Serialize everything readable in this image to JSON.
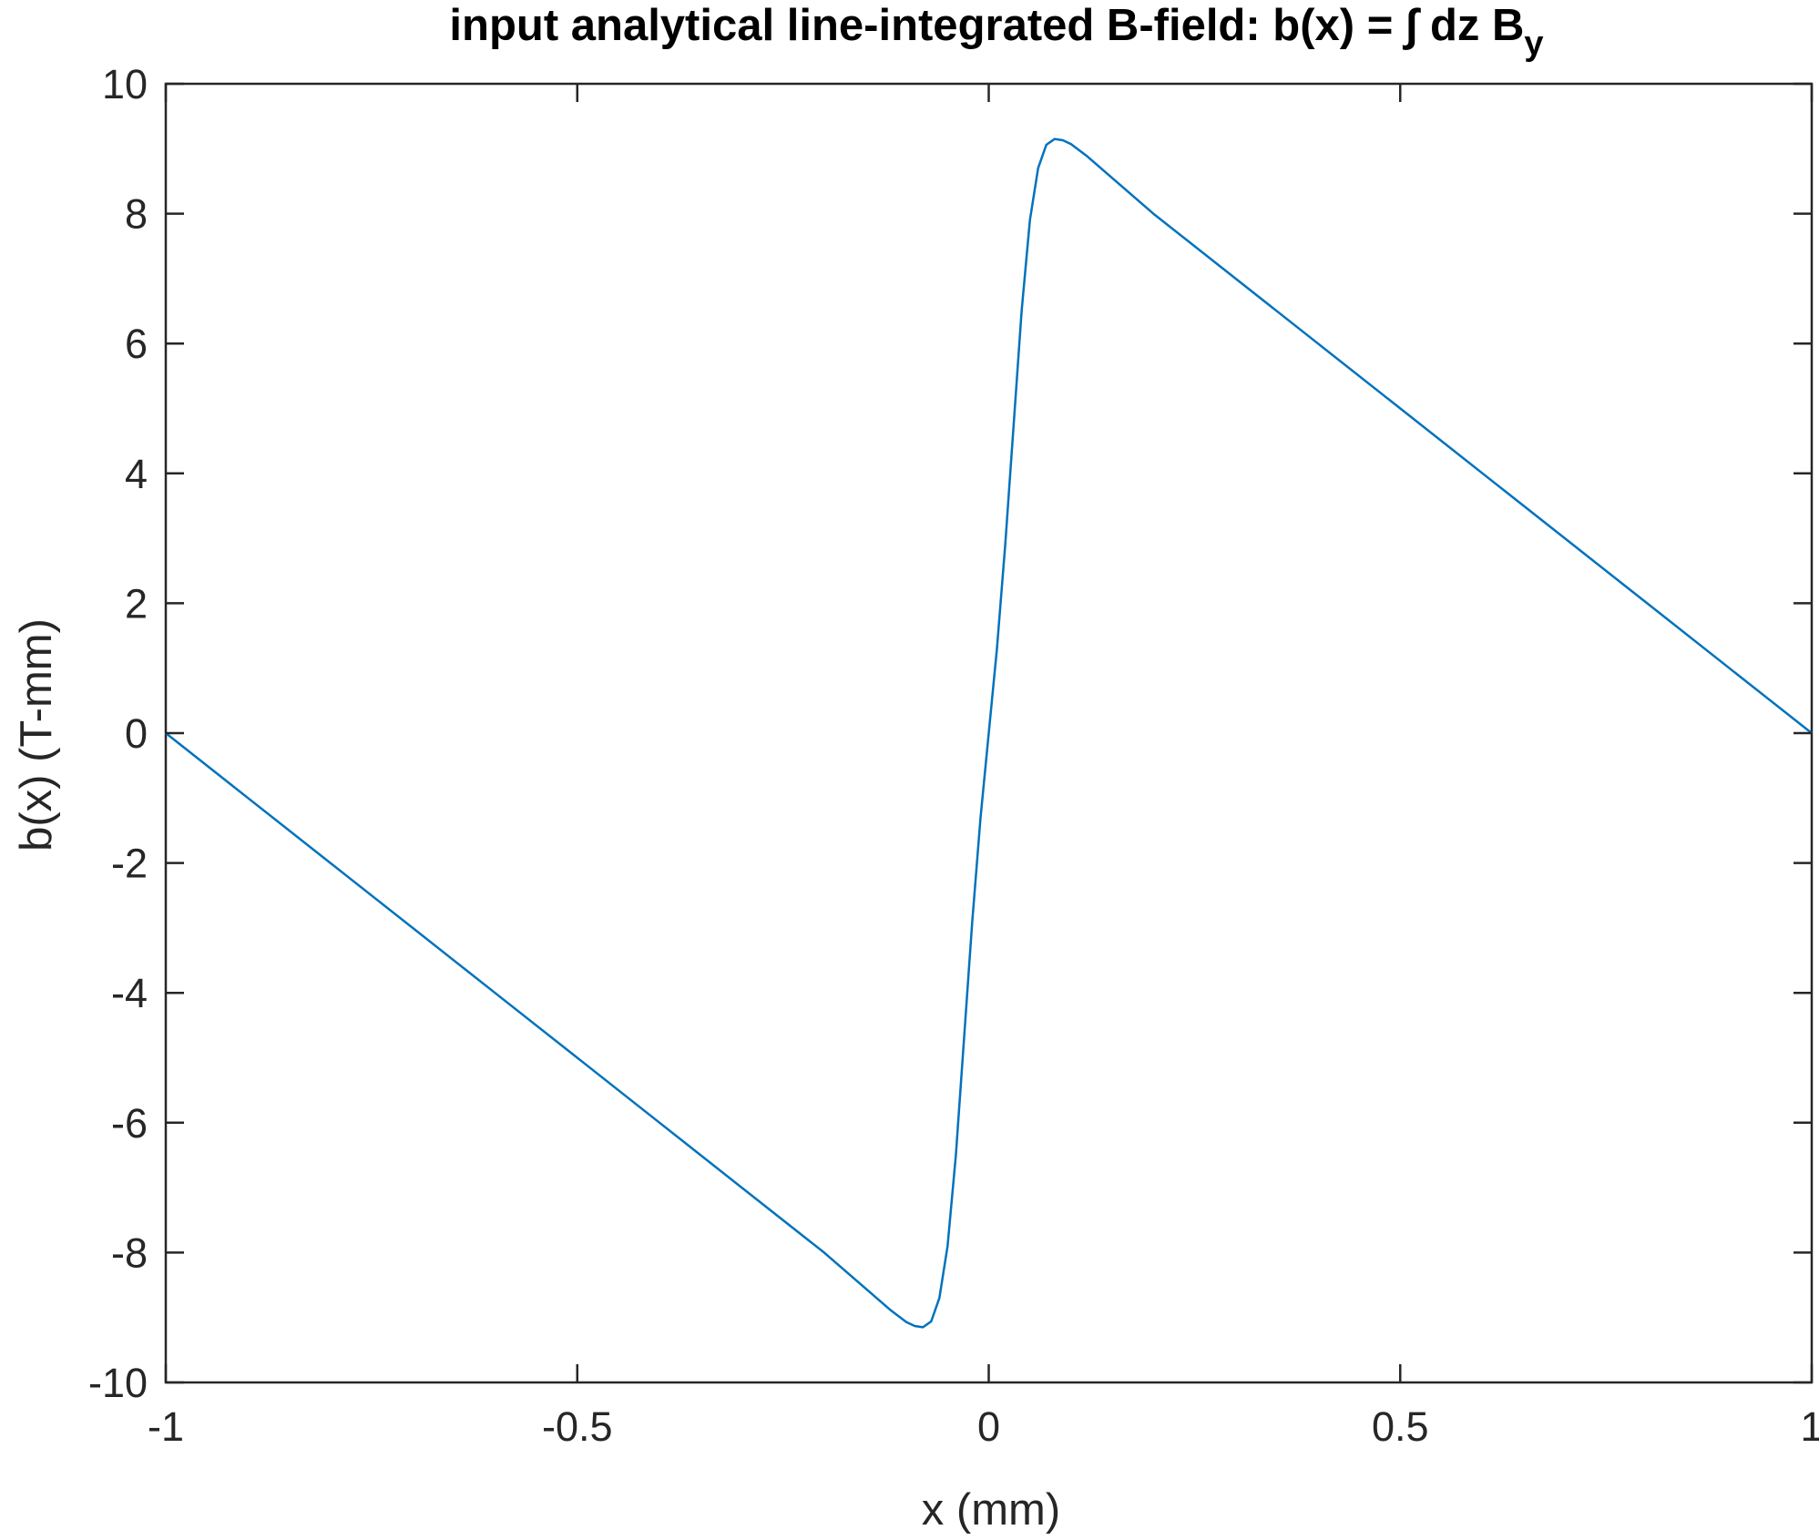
{
  "chart_data": {
    "type": "line",
    "title": "input analytical line-integrated B-field: b(x) = ∫ dz B",
    "title_subscript": "y",
    "xlabel": "x (mm)",
    "ylabel": "b(x) (T-mm)",
    "xlim": [
      -1,
      1
    ],
    "ylim": [
      -10,
      10
    ],
    "xticks": [
      -1,
      -0.5,
      0,
      0.5,
      1
    ],
    "xtick_labels": [
      "-1",
      "-0.5",
      "0",
      "0.5",
      "1"
    ],
    "yticks": [
      -10,
      -8,
      -6,
      -4,
      -2,
      0,
      2,
      4,
      6,
      8,
      10
    ],
    "ytick_labels": [
      "-10",
      "-8",
      "-6",
      "-4",
      "-2",
      "0",
      "2",
      "4",
      "6",
      "8",
      "10"
    ],
    "grid": false,
    "box": true,
    "line_color": "#0072BD",
    "axis_color": "#262626",
    "series": [
      {
        "x": [
          -1,
          -0.9,
          -0.8,
          -0.7,
          -0.6,
          -0.5,
          -0.4,
          -0.3,
          -0.2,
          -0.15,
          -0.12,
          -0.1,
          -0.09,
          -0.08,
          -0.07,
          -0.06,
          -0.05,
          -0.04,
          -0.03,
          -0.02,
          -0.01,
          0,
          0.01,
          0.02,
          0.03,
          0.04,
          0.05,
          0.06,
          0.07,
          0.08,
          0.09,
          0.1,
          0.12,
          0.15,
          0.2,
          0.3,
          0.4,
          0.5,
          0.6,
          0.7,
          0.8,
          0.9,
          1
        ],
        "y": [
          0,
          -1.0,
          -2.0,
          -3.0,
          -4.0,
          -5.0,
          -6.0,
          -7.0,
          -8.0,
          -8.55,
          -8.88,
          -9.07,
          -9.13,
          -9.15,
          -9.06,
          -8.7,
          -7.9,
          -6.5,
          -4.7,
          -2.9,
          -1.3,
          0,
          1.3,
          2.9,
          4.7,
          6.5,
          7.9,
          8.7,
          9.06,
          9.15,
          9.13,
          9.07,
          8.88,
          8.55,
          8.0,
          7.0,
          6.0,
          5.0,
          4.0,
          3.0,
          2.0,
          1.0,
          0
        ]
      }
    ]
  }
}
